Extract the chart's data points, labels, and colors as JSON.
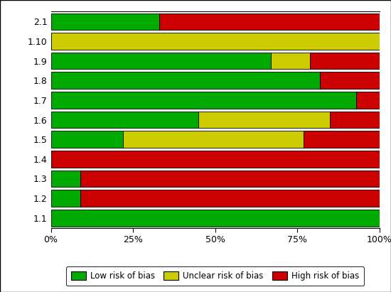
{
  "categories": [
    "1.1",
    "1.2",
    "1.3",
    "1.4",
    "1.5",
    "1.6",
    "1.7",
    "1.8",
    "1.9",
    "1.10",
    "2.1"
  ],
  "low_risk": [
    100,
    9,
    9,
    0,
    22,
    45,
    93,
    82,
    67,
    0,
    33
  ],
  "unclear_risk": [
    0,
    0,
    0,
    0,
    55,
    40,
    0,
    0,
    12,
    100,
    0
  ],
  "high_risk": [
    0,
    91,
    91,
    100,
    23,
    15,
    7,
    18,
    21,
    0,
    67
  ],
  "colors": {
    "low": "#00aa00",
    "unclear": "#cccc00",
    "high": "#cc0000"
  },
  "legend_labels": [
    "Low risk of bias",
    "Unclear risk of bias",
    "High risk of bias"
  ],
  "xticks": [
    0,
    25,
    50,
    75,
    100
  ],
  "xtick_labels": [
    "0%",
    "25%",
    "50%",
    "75%",
    "100%"
  ],
  "bar_height": 0.85,
  "figure_bg": "#ffffff",
  "axes_bg": "#ffffff",
  "border_color": "#000000",
  "figsize": [
    5.5,
    4.11
  ],
  "dpi": 100
}
